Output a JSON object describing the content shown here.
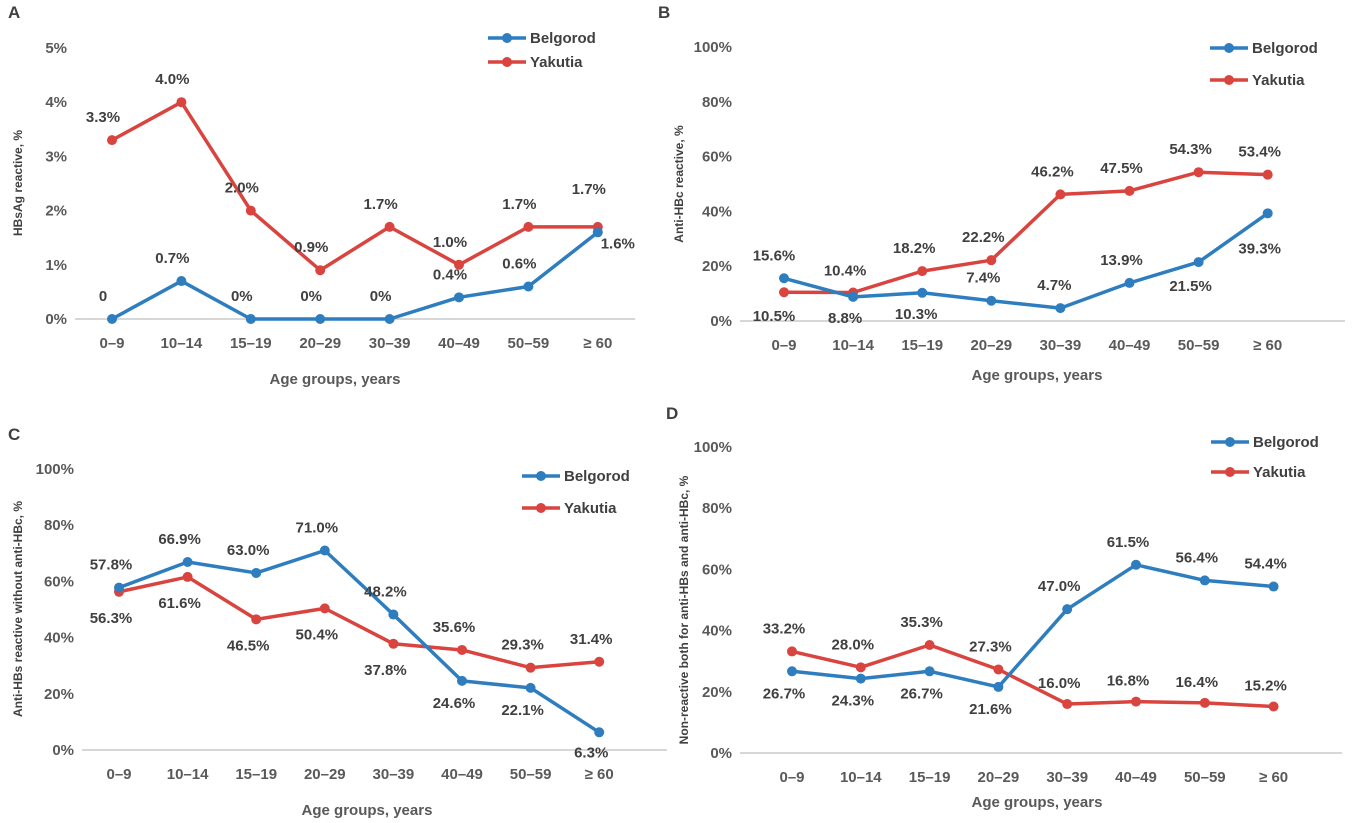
{
  "colors": {
    "Belgorod": "#2E7EBF",
    "Yakutia": "#D9443F"
  },
  "chart_data": [
    {
      "panel": "A",
      "type": "line",
      "ylabel": "HBsAg reactive, %",
      "xlabel": "Age groups, years",
      "categories": [
        "0–9",
        "10–14",
        "15–19",
        "20–29",
        "30–39",
        "40–49",
        "50–59",
        "≥ 60"
      ],
      "yticks": [
        "0%",
        "1%",
        "2%",
        "3%",
        "4%",
        "5%"
      ],
      "ylim": [
        0,
        5
      ],
      "legend": "top-right",
      "series": [
        {
          "name": "Belgorod",
          "values": [
            0,
            0.7,
            0,
            0,
            0,
            0.4,
            0.6,
            1.6
          ],
          "labels": [
            "0",
            "0.7%",
            "0%",
            "0%",
            "0%",
            "0.4%",
            "0.6%",
            "1.6%"
          ]
        },
        {
          "name": "Yakutia",
          "values": [
            3.3,
            4.0,
            2.0,
            0.9,
            1.7,
            1.0,
            1.7,
            1.7
          ],
          "labels": [
            "3.3%",
            "4.0%",
            "2.0%",
            "0.9%",
            "1.7%",
            "1.0%",
            "1.7%",
            "1.7%"
          ]
        }
      ]
    },
    {
      "panel": "B",
      "type": "line",
      "ylabel": "Anti-HBc reactive, %",
      "xlabel": "Age groups, years",
      "categories": [
        "0–9",
        "10–14",
        "15–19",
        "20–29",
        "30–39",
        "40–49",
        "50–59",
        "≥ 60"
      ],
      "yticks": [
        "0%",
        "20%",
        "40%",
        "60%",
        "80%",
        "100%"
      ],
      "ylim": [
        0,
        100
      ],
      "legend": "top-right",
      "series": [
        {
          "name": "Belgorod",
          "values": [
            15.6,
            8.8,
            10.3,
            7.4,
            4.7,
            13.9,
            21.5,
            39.3
          ],
          "labels": [
            "15.6%",
            "8.8%",
            "10.3%",
            "7.4%",
            "4.7%",
            "13.9%",
            "21.5%",
            "39.3%"
          ]
        },
        {
          "name": "Yakutia",
          "values": [
            10.5,
            10.4,
            18.2,
            22.2,
            46.2,
            47.5,
            54.3,
            53.4
          ],
          "labels": [
            "10.5%",
            "10.4%",
            "18.2%",
            "22.2%",
            "46.2%",
            "47.5%",
            "54.3%",
            "53.4%"
          ]
        }
      ]
    },
    {
      "panel": "C",
      "type": "line",
      "ylabel": "Anti-HBs reactive without anti-HBc, %",
      "xlabel": "Age groups, years",
      "categories": [
        "0–9",
        "10–14",
        "15–19",
        "20–29",
        "30–39",
        "40–49",
        "50–59",
        "≥ 60"
      ],
      "yticks": [
        "0%",
        "20%",
        "40%",
        "60%",
        "80%",
        "100%"
      ],
      "ylim": [
        0,
        100
      ],
      "legend": "top-right",
      "series": [
        {
          "name": "Belgorod",
          "values": [
            57.8,
            66.9,
            63.0,
            71.0,
            48.2,
            24.6,
            22.1,
            6.3
          ],
          "labels": [
            "57.8%",
            "66.9%",
            "63.0%",
            "71.0%",
            "48.2%",
            "24.6%",
            "22.1%",
            "6.3%"
          ]
        },
        {
          "name": "Yakutia",
          "values": [
            56.3,
            61.6,
            46.5,
            50.4,
            37.8,
            35.6,
            29.3,
            31.4
          ],
          "labels": [
            "56.3%",
            "61.6%",
            "46.5%",
            "50.4%",
            "37.8%",
            "35.6%",
            "29.3%",
            "31.4%"
          ]
        }
      ]
    },
    {
      "panel": "D",
      "type": "line",
      "ylabel": "Non-reactive both for anti-HBs and anti-HBc, %",
      "xlabel": "Age groups, years",
      "categories": [
        "0–9",
        "10–14",
        "15–19",
        "20–29",
        "30–39",
        "40–49",
        "50–59",
        "≥ 60"
      ],
      "yticks": [
        "0%",
        "20%",
        "40%",
        "60%",
        "80%",
        "100%"
      ],
      "ylim": [
        0,
        100
      ],
      "legend": "top-right",
      "series": [
        {
          "name": "Belgorod",
          "values": [
            26.7,
            24.3,
            26.7,
            21.6,
            47.0,
            61.5,
            56.4,
            54.4
          ],
          "labels": [
            "26.7%",
            "24.3%",
            "26.7%",
            "21.6%",
            "47.0%",
            "61.5%",
            "56.4%",
            "54.4%"
          ]
        },
        {
          "name": "Yakutia",
          "values": [
            33.2,
            28.0,
            35.3,
            27.3,
            16.0,
            16.8,
            16.4,
            15.2
          ],
          "labels": [
            "33.2%",
            "28.0%",
            "35.3%",
            "27.3%",
            "16.0%",
            "16.8%",
            "16.4%",
            "15.2%"
          ]
        }
      ]
    }
  ]
}
